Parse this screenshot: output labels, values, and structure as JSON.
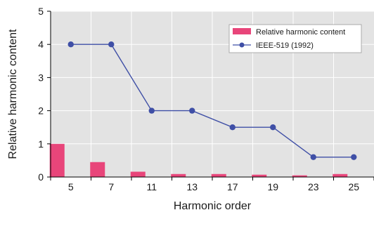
{
  "chart_data": {
    "type": "bar",
    "xlabel": "Harmonic order",
    "ylabel": "Relative harmonic content",
    "categories": [
      "5",
      "7",
      "11",
      "13",
      "17",
      "19",
      "23",
      "25"
    ],
    "ylim": [
      0,
      5
    ],
    "yticks": [
      "0",
      "1",
      "2",
      "3",
      "4",
      "5"
    ],
    "grid": true,
    "legend_position": "top-right",
    "series": [
      {
        "name": "Relative harmonic content",
        "type": "bar",
        "color": "#e8457a",
        "values": [
          1.0,
          0.45,
          0.16,
          0.09,
          0.09,
          0.07,
          0.05,
          0.09
        ]
      },
      {
        "name": "IEEE-519 (1992)",
        "type": "line",
        "color": "#3f4fa6",
        "values": [
          4,
          4,
          2,
          2,
          1.5,
          1.5,
          0.6,
          0.6
        ]
      }
    ]
  },
  "colors": {
    "plot_background": "#e3e3e3",
    "grid": "#ffffff",
    "axis": "#000000"
  }
}
